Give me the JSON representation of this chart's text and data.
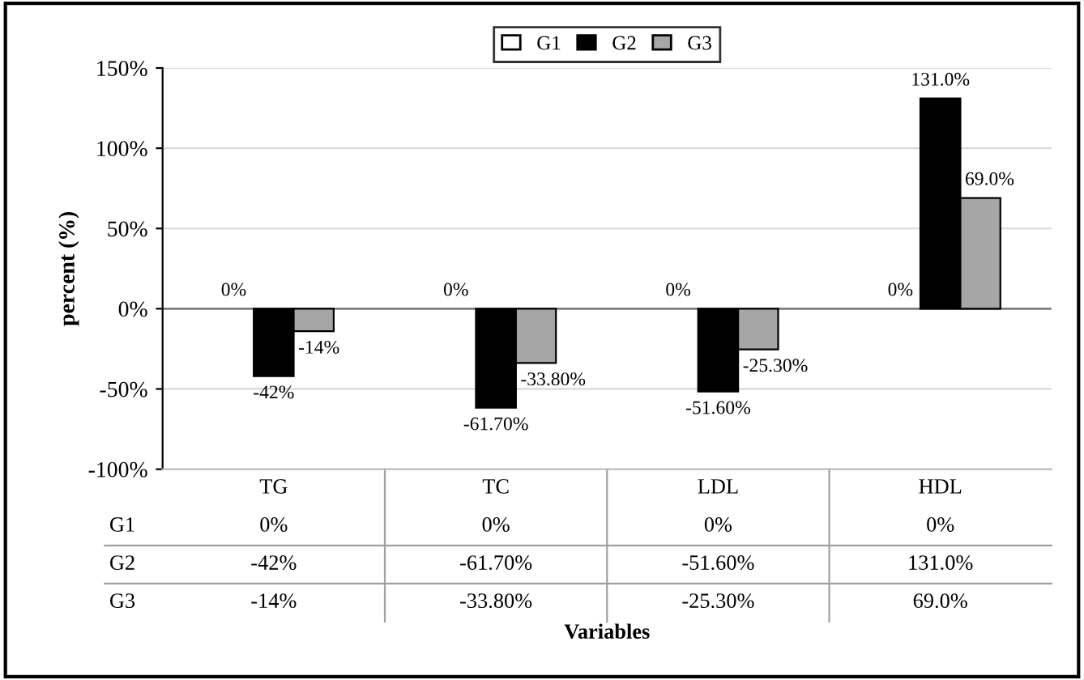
{
  "chart_data": {
    "type": "bar",
    "ylabel": "percent (%)",
    "annotations": [
      "Variables"
    ],
    "categories": [
      "TG",
      "TC",
      "LDL",
      "HDL"
    ],
    "series": [
      {
        "name": "G1",
        "color": "#ffffff",
        "values": [
          0,
          0,
          0,
          0
        ],
        "value_labels": [
          "0%",
          "0%",
          "0%",
          "0%"
        ]
      },
      {
        "name": "G2",
        "color": "#000000",
        "values": [
          -42,
          -61.7,
          -51.6,
          131
        ],
        "value_labels": [
          "-42%",
          "-61.70%",
          "-51.60%",
          "131.0%"
        ]
      },
      {
        "name": "G3",
        "color": "#a6a6a6",
        "values": [
          -14,
          -33.8,
          -25.3,
          69
        ],
        "value_labels": [
          "-14%",
          "-33.80%",
          "-25.30%",
          "69.0%"
        ]
      }
    ],
    "ylim": [
      -100,
      150
    ],
    "yticks": [
      {
        "value": -100,
        "label": "-100%"
      },
      {
        "value": -50,
        "label": "-50%"
      },
      {
        "value": 0,
        "label": "0%"
      },
      {
        "value": 50,
        "label": "50%"
      },
      {
        "value": 100,
        "label": "100%"
      },
      {
        "value": 150,
        "label": "150%"
      }
    ],
    "grid": "y",
    "legend": "top"
  }
}
